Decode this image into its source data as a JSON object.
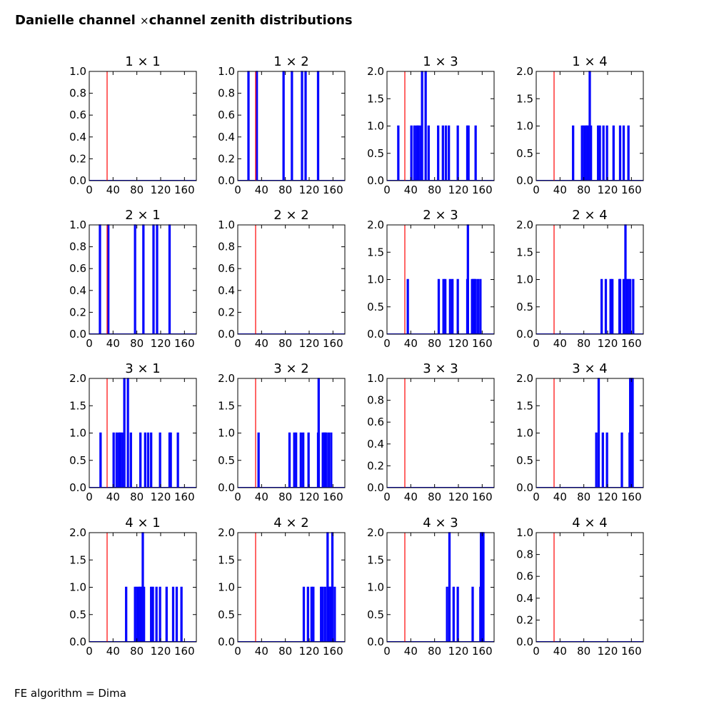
{
  "figure": {
    "title_prefix": "Danielle channel ",
    "title_times": "×",
    "title_suffix": "channel zenith distributions",
    "footer": "FE algorithm = Dima"
  },
  "chart_data": {
    "type": "histogram-grid",
    "title": "Danielle channel ×channel zenith distributions",
    "annotation": "FE algorithm = Dima",
    "grid_rows": 4,
    "grid_cols": 4,
    "xlim": [
      0,
      180
    ],
    "xticks": [
      0,
      40,
      80,
      120,
      160
    ],
    "reference_line": {
      "x": 30,
      "color": "#ff0000"
    },
    "bar_color": "#0000ff",
    "grid": false,
    "panels": [
      {
        "title": "1 × 1",
        "row": 1,
        "col": 1,
        "ylim": [
          0,
          1.0
        ],
        "yticks": [
          "0.0",
          "0.2",
          "0.4",
          "0.6",
          "0.8",
          "1.0"
        ],
        "x": [],
        "counts": []
      },
      {
        "title": "1 × 2",
        "row": 1,
        "col": 2,
        "ylim": [
          0,
          1.0
        ],
        "yticks": [
          "0.0",
          "0.2",
          "0.4",
          "0.6",
          "0.8",
          "1.0"
        ],
        "x": [
          17,
          31,
          76,
          90,
          107,
          113,
          134
        ],
        "counts": [
          1,
          1,
          1,
          1,
          1,
          1,
          1
        ]
      },
      {
        "title": "1 × 3",
        "row": 1,
        "col": 3,
        "ylim": [
          0,
          2.0
        ],
        "yticks": [
          "0.0",
          "0.5",
          "1.0",
          "1.5",
          "2.0"
        ],
        "x": [
          18,
          40,
          45,
          49,
          51,
          54,
          58,
          64,
          69,
          85,
          93,
          98,
          103,
          118,
          134,
          136,
          148
        ],
        "counts": [
          1,
          1,
          1,
          1,
          1,
          1,
          2,
          2,
          1,
          1,
          1,
          1,
          1,
          1,
          1,
          1,
          1
        ]
      },
      {
        "title": "1 × 4",
        "row": 1,
        "col": 4,
        "ylim": [
          0,
          2.0
        ],
        "yticks": [
          "0.0",
          "0.5",
          "1.0",
          "1.5",
          "2.0"
        ],
        "x": [
          61,
          76,
          79,
          82,
          84,
          86,
          89,
          91,
          103,
          106,
          112,
          118,
          129,
          140,
          146,
          154
        ],
        "counts": [
          1,
          1,
          1,
          1,
          1,
          1,
          2,
          1,
          1,
          1,
          1,
          1,
          1,
          1,
          1,
          1
        ]
      },
      {
        "title": "2 × 1",
        "row": 2,
        "col": 1,
        "ylim": [
          0,
          1.0
        ],
        "yticks": [
          "0.0",
          "0.2",
          "0.4",
          "0.6",
          "0.8",
          "1.0"
        ],
        "x": [
          17,
          31,
          76,
          90,
          107,
          113,
          134
        ],
        "counts": [
          1,
          1,
          1,
          1,
          1,
          1,
          1
        ]
      },
      {
        "title": "2 × 2",
        "row": 2,
        "col": 2,
        "ylim": [
          0,
          1.0
        ],
        "yticks": [
          "0.0",
          "0.2",
          "0.4",
          "0.6",
          "0.8",
          "1.0"
        ],
        "x": [],
        "counts": []
      },
      {
        "title": "2 × 3",
        "row": 2,
        "col": 3,
        "ylim": [
          0,
          2.0
        ],
        "yticks": [
          "0.0",
          "0.5",
          "1.0",
          "1.5",
          "2.0"
        ],
        "x": [
          34,
          86,
          94,
          97,
          105,
          109,
          118,
          134,
          135,
          142,
          144,
          146,
          148,
          152,
          156
        ],
        "counts": [
          1,
          1,
          1,
          1,
          1,
          1,
          1,
          1,
          2,
          1,
          1,
          1,
          1,
          1,
          1
        ]
      },
      {
        "title": "2 × 4",
        "row": 2,
        "col": 4,
        "ylim": [
          0,
          2.0
        ],
        "yticks": [
          "0.0",
          "0.5",
          "1.0",
          "1.5",
          "2.0"
        ],
        "x": [
          109,
          116,
          124,
          127,
          139,
          140,
          146,
          149,
          152,
          154,
          157,
          162
        ],
        "counts": [
          1,
          1,
          1,
          1,
          1,
          1,
          1,
          2,
          1,
          1,
          1,
          1
        ]
      },
      {
        "title": "3 × 1",
        "row": 3,
        "col": 1,
        "ylim": [
          0,
          2.0
        ],
        "yticks": [
          "0.0",
          "0.5",
          "1.0",
          "1.5",
          "2.0"
        ],
        "x": [
          18,
          40,
          45,
          49,
          51,
          54,
          58,
          64,
          69,
          85,
          93,
          98,
          103,
          118,
          134,
          136,
          148
        ],
        "counts": [
          1,
          1,
          1,
          1,
          1,
          1,
          2,
          2,
          1,
          1,
          1,
          1,
          1,
          1,
          1,
          1,
          1
        ]
      },
      {
        "title": "3 × 2",
        "row": 3,
        "col": 2,
        "ylim": [
          0,
          2.0
        ],
        "yticks": [
          "0.0",
          "0.5",
          "1.0",
          "1.5",
          "2.0"
        ],
        "x": [
          34,
          86,
          94,
          97,
          105,
          109,
          118,
          134,
          135,
          142,
          144,
          146,
          148,
          152,
          156
        ],
        "counts": [
          1,
          1,
          1,
          1,
          1,
          1,
          1,
          1,
          2,
          1,
          1,
          1,
          1,
          1,
          1
        ]
      },
      {
        "title": "3 × 3",
        "row": 3,
        "col": 3,
        "ylim": [
          0,
          1.0
        ],
        "yticks": [
          "0.0",
          "0.2",
          "0.4",
          "0.6",
          "0.8",
          "1.0"
        ],
        "x": [],
        "counts": []
      },
      {
        "title": "3 × 4",
        "row": 3,
        "col": 4,
        "ylim": [
          0,
          2.0
        ],
        "yticks": [
          "0.0",
          "0.5",
          "1.0",
          "1.5",
          "2.0"
        ],
        "x": [
          100,
          104,
          111,
          118,
          143,
          156,
          157,
          159,
          161
        ],
        "counts": [
          1,
          2,
          1,
          1,
          1,
          1,
          2,
          2,
          2
        ]
      },
      {
        "title": "4 × 1",
        "row": 4,
        "col": 1,
        "ylim": [
          0,
          2.0
        ],
        "yticks": [
          "0.0",
          "0.5",
          "1.0",
          "1.5",
          "2.0"
        ],
        "x": [
          61,
          76,
          79,
          82,
          84,
          86,
          89,
          91,
          103,
          106,
          112,
          118,
          129,
          140,
          146,
          154
        ],
        "counts": [
          1,
          1,
          1,
          1,
          1,
          1,
          2,
          1,
          1,
          1,
          1,
          1,
          1,
          1,
          1,
          1
        ]
      },
      {
        "title": "4 × 2",
        "row": 4,
        "col": 2,
        "ylim": [
          0,
          2.0
        ],
        "yticks": [
          "0.0",
          "0.5",
          "1.0",
          "1.5",
          "2.0"
        ],
        "x": [
          110,
          117,
          123,
          126,
          139,
          142,
          146,
          150,
          151,
          153,
          155,
          156,
          158,
          162
        ],
        "counts": [
          1,
          1,
          1,
          1,
          1,
          1,
          1,
          2,
          1,
          1,
          1,
          1,
          2,
          1
        ]
      },
      {
        "title": "4 × 3",
        "row": 4,
        "col": 3,
        "ylim": [
          0,
          2.0
        ],
        "yticks": [
          "0.0",
          "0.5",
          "1.0",
          "1.5",
          "2.0"
        ],
        "x": [
          100,
          104,
          111,
          118,
          143,
          156,
          157,
          159,
          161
        ],
        "counts": [
          1,
          2,
          1,
          1,
          1,
          1,
          2,
          2,
          2
        ]
      },
      {
        "title": "4 × 4",
        "row": 4,
        "col": 4,
        "ylim": [
          0,
          1.0
        ],
        "yticks": [
          "0.0",
          "0.2",
          "0.4",
          "0.6",
          "0.8",
          "1.0"
        ],
        "x": [],
        "counts": []
      }
    ]
  }
}
